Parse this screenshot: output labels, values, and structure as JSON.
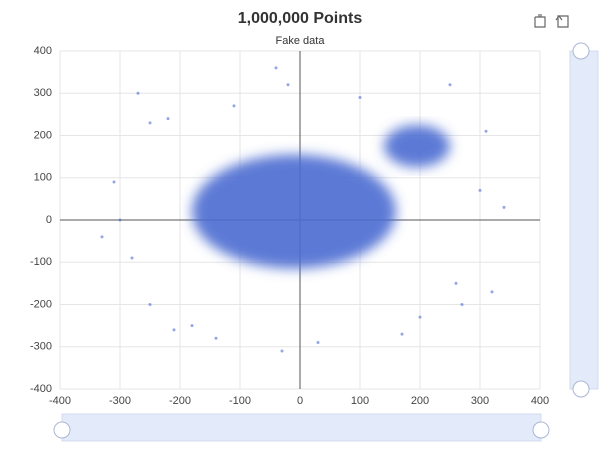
{
  "chart_data": {
    "type": "scatter",
    "title": "1,000,000 Points",
    "subtitle": "Fake data",
    "color": "#4a6cd0",
    "clusters": [
      {
        "x": -10,
        "y": 20,
        "rx": 170,
        "ry": 135
      },
      {
        "x": 195,
        "y": 175,
        "rx": 55,
        "ry": 50
      }
    ],
    "x": [
      -270,
      -250,
      -300,
      -330,
      -250,
      -210,
      -180,
      -40,
      -20,
      310,
      250,
      340,
      320,
      270,
      -110,
      100,
      200,
      -30,
      260,
      -220,
      -280,
      300,
      170,
      -140,
      30,
      -310
    ],
    "y": [
      300,
      230,
      0,
      -40,
      -200,
      -260,
      -250,
      360,
      320,
      210,
      320,
      30,
      -170,
      -200,
      270,
      290,
      -230,
      -310,
      -150,
      240,
      -90,
      70,
      -270,
      -280,
      -290,
      90
    ],
    "xlim": [
      -400,
      400
    ],
    "ylim": [
      -400,
      400
    ],
    "xticks": [
      -400,
      -300,
      -200,
      -100,
      0,
      100,
      200,
      300,
      400
    ],
    "yticks": [
      -400,
      -300,
      -200,
      -100,
      0,
      100,
      200,
      300,
      400
    ],
    "grid": true
  }
}
